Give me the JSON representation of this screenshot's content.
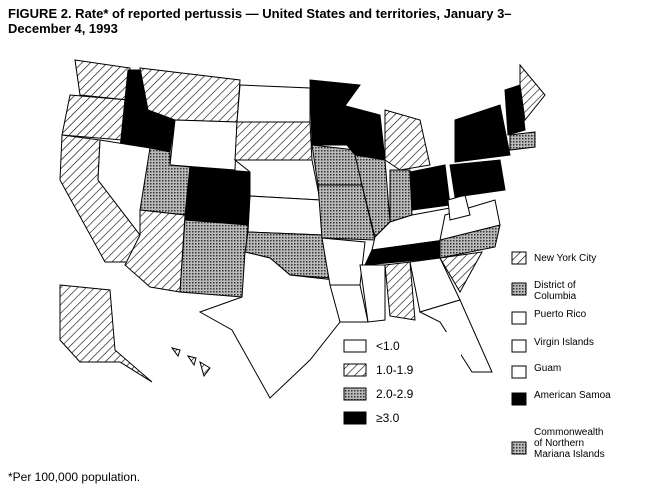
{
  "title": "FIGURE 2. Rate* of reported pertussis — United States and territories, January 3–December 4, 1993",
  "footnote": "*Per 100,000 population.",
  "legend": [
    {
      "label": "<1.0",
      "fill": "none"
    },
    {
      "label": "1.0-1.9",
      "fill": "hatch"
    },
    {
      "label": "2.0-2.9",
      "fill": "dots"
    },
    {
      "label": "≥3.0",
      "fill": "solid"
    }
  ],
  "territories": [
    {
      "label": "New York City",
      "fill": "hatch"
    },
    {
      "label": "District of Columbia",
      "fill": "dots"
    },
    {
      "label": "Puerto Rico",
      "fill": "none"
    },
    {
      "label": "Virgin Islands",
      "fill": "none"
    },
    {
      "label": "Guam",
      "fill": "none"
    },
    {
      "label": "American Samoa",
      "fill": "solid"
    },
    {
      "label": "Commonwealth of Northern Mariana Islands",
      "fill": "dots"
    }
  ]
}
